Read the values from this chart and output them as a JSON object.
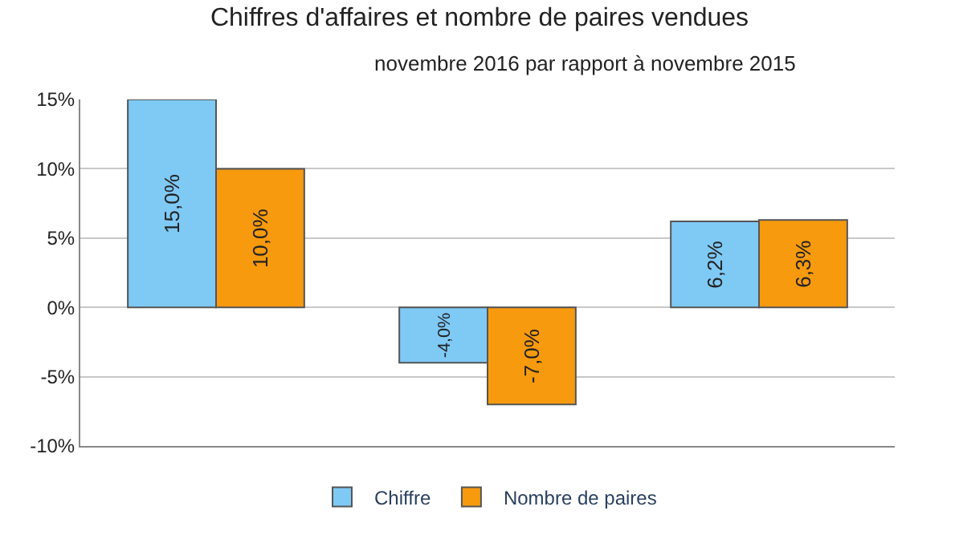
{
  "chart_data": {
    "type": "bar",
    "title": "Chiffres d'affaires et nombre de paires vendues",
    "subtitle": "novembre 2016 par rapport à novembre 2015",
    "categories": [
      null,
      null,
      null
    ],
    "series": [
      {
        "name": "Chiffre",
        "color": "#7fc9f5",
        "values": [
          15.0,
          -4.0,
          6.2
        ],
        "value_labels": [
          "15,0%",
          "-4,0%",
          "6,2%"
        ]
      },
      {
        "name": "Nombre de paires",
        "color": "#f79a0e",
        "values": [
          10.0,
          -7.0,
          6.3
        ],
        "value_labels": [
          "10,0%",
          "-7,0%",
          "6,3%"
        ]
      }
    ],
    "ylim": [
      -10,
      15
    ],
    "yticks": [
      {
        "value": -10,
        "label": "-10%"
      },
      {
        "value": -5,
        "label": "-5%"
      },
      {
        "value": 0,
        "label": "0%"
      },
      {
        "value": 5,
        "label": "5%"
      },
      {
        "value": 10,
        "label": "10%"
      },
      {
        "value": 15,
        "label": "15%"
      }
    ],
    "grid": "y",
    "legend": "bottom"
  }
}
